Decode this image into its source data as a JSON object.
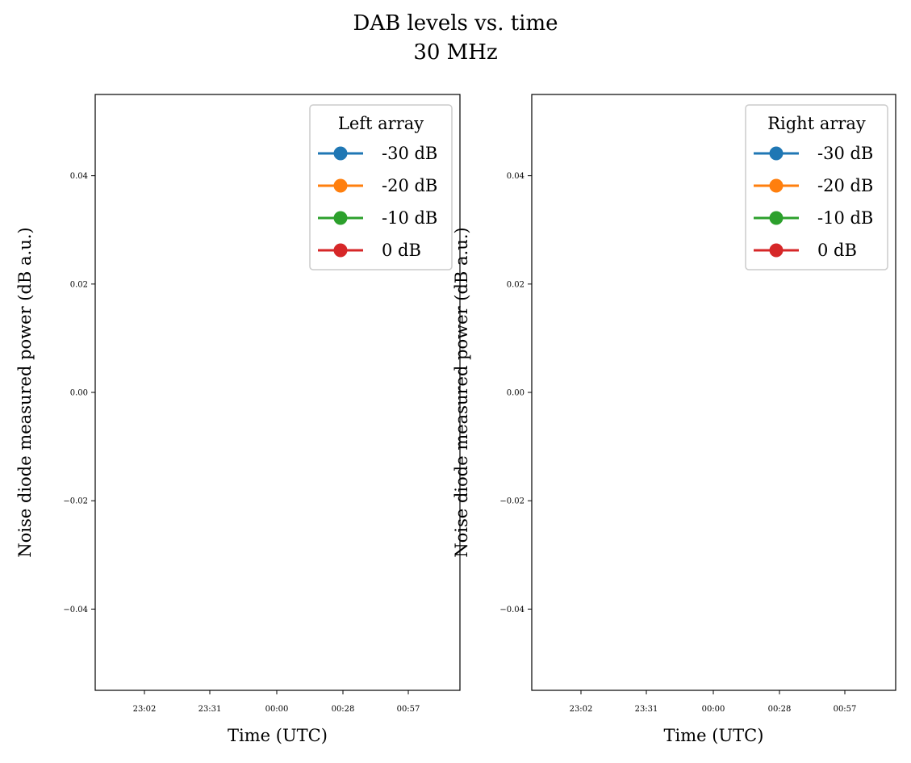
{
  "figure": {
    "title": "DAB levels vs. time",
    "subtitle": "30 MHz"
  },
  "chart_data": [
    {
      "type": "line",
      "legend_title": "Left array",
      "legend_position": "top-right",
      "xlabel": "Time (UTC)",
      "ylabel": "Noise diode measured power (dB a.u.)",
      "x_ticks": [
        "23:02",
        "23:31",
        "00:00",
        "00:28",
        "00:57"
      ],
      "y_ticks": [
        "0.04",
        "0.02",
        "0.00",
        "−0.02",
        "−0.04"
      ],
      "y_tick_values": [
        0.04,
        0.02,
        0.0,
        -0.02,
        -0.04
      ],
      "ylim": [
        -0.055,
        0.055
      ],
      "grid": false,
      "series": [
        {
          "name": "-30 dB",
          "color": "#1f77b4",
          "x": [],
          "y": []
        },
        {
          "name": "-20 dB",
          "color": "#ff7f0e",
          "x": [],
          "y": []
        },
        {
          "name": "-10 dB",
          "color": "#2ca02c",
          "x": [],
          "y": []
        },
        {
          "name": "0 dB",
          "color": "#d62728",
          "x": [],
          "y": []
        }
      ]
    },
    {
      "type": "line",
      "legend_title": "Right array",
      "legend_position": "top-right",
      "xlabel": "Time (UTC)",
      "ylabel": "Noise diode measured power (dB a.u.)",
      "x_ticks": [
        "23:02",
        "23:31",
        "00:00",
        "00:28",
        "00:57"
      ],
      "y_ticks": [
        "0.04",
        "0.02",
        "0.00",
        "−0.02",
        "−0.04"
      ],
      "y_tick_values": [
        0.04,
        0.02,
        0.0,
        -0.02,
        -0.04
      ],
      "ylim": [
        -0.055,
        0.055
      ],
      "grid": false,
      "series": [
        {
          "name": "-30 dB",
          "color": "#1f77b4",
          "x": [],
          "y": []
        },
        {
          "name": "-20 dB",
          "color": "#ff7f0e",
          "x": [],
          "y": []
        },
        {
          "name": "-10 dB",
          "color": "#2ca02c",
          "x": [],
          "y": []
        },
        {
          "name": "0 dB",
          "color": "#d62728",
          "x": [],
          "y": []
        }
      ]
    }
  ]
}
